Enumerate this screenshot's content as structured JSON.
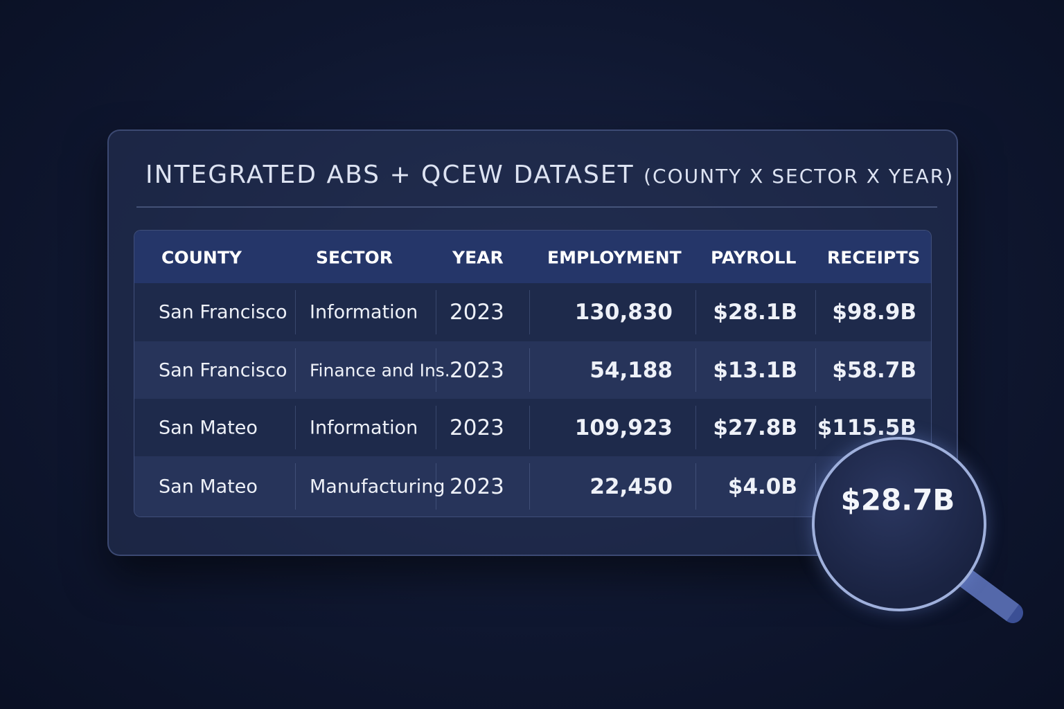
{
  "header": {
    "title": "INTEGRATED ABS + QCEW DATASET",
    "subtitle": "(COUNTY X SECTOR X YEAR)"
  },
  "table": {
    "columns": [
      "COUNTY",
      "SECTOR",
      "YEAR",
      "EMPLOYMENT",
      "PAYROLL",
      "RECEIPTS"
    ],
    "rows": [
      [
        "San Francisco",
        "Information",
        "2023",
        "130,830",
        "$28.1B",
        "$98.9B"
      ],
      [
        "San Francisco",
        "Finance and Ins.",
        "2023",
        "54,188",
        "$13.1B",
        "$58.7B"
      ],
      [
        "San Mateo",
        "Information",
        "2023",
        "109,923",
        "$27.8B",
        "$115.5B"
      ],
      [
        "San Mateo",
        "Manufacturing",
        "2023",
        "22,450",
        "$4.0B",
        "$28.7B"
      ]
    ]
  }
}
